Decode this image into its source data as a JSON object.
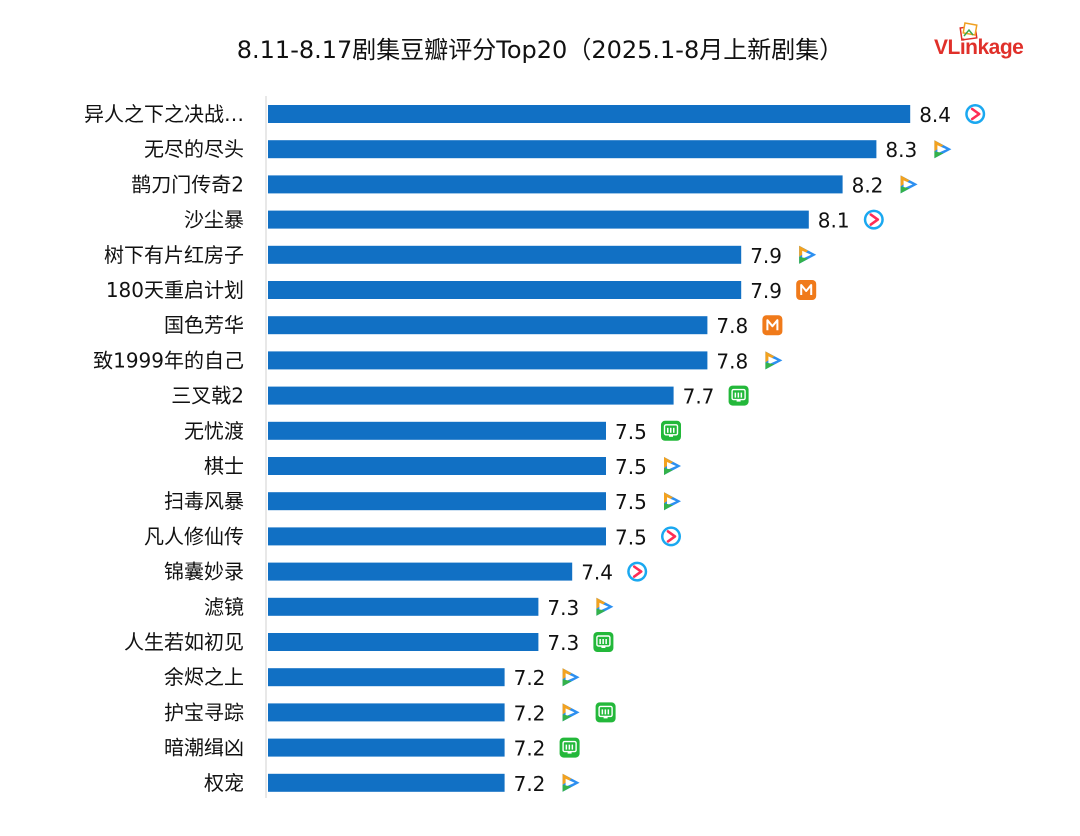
{
  "header": {
    "title": "8.11-8.17剧集豆瓣评分Top20（2025.1-8月上新剧集）",
    "logo_text": "VLinkage"
  },
  "platform_icons": {
    "tencent": {
      "icon": "tencent-video-icon",
      "colors": [
        "#2c8ff0",
        "#f3a21f",
        "#34b24a"
      ]
    },
    "youku": {
      "icon": "youku-icon",
      "colors": [
        "#1aa8f0",
        "#ff2d55"
      ]
    },
    "mango": {
      "icon": "mango-tv-icon",
      "colors": [
        "#f07a1a"
      ]
    },
    "iqiyi": {
      "icon": "iqiyi-icon",
      "colors": [
        "#23b83a"
      ]
    }
  },
  "chart_data": {
    "type": "bar",
    "orientation": "horizontal",
    "title": "8.11-8.17剧集豆瓣评分Top20（2025.1-8月上新剧集）",
    "xlabel": "",
    "ylabel": "",
    "bar_color": "#1170c4",
    "xlim": [
      6.5,
      8.5
    ],
    "grid": false,
    "categories": [
      "异人之下之决战…",
      "无尽的尽头",
      "鹊刀门传奇2",
      "沙尘暴",
      "树下有片红房子",
      "180天重启计划",
      "国色芳华",
      "致1999年的自己",
      "三叉戟2",
      "无忧渡",
      "棋士",
      "扫毒风暴",
      "凡人修仙传",
      "锦囊妙录",
      "滤镜",
      "人生若如初见",
      "余烬之上",
      "护宝寻踪",
      "暗潮缉凶",
      "权宠"
    ],
    "values": [
      8.4,
      8.3,
      8.2,
      8.1,
      7.9,
      7.9,
      7.8,
      7.8,
      7.7,
      7.5,
      7.5,
      7.5,
      7.5,
      7.4,
      7.3,
      7.3,
      7.2,
      7.2,
      7.2,
      7.2
    ],
    "labels": [
      "8.4",
      "8.3",
      "8.2",
      "8.1",
      "7.9",
      "7.9",
      "7.8",
      "7.8",
      "7.7",
      "7.5",
      "7.5",
      "7.5",
      "7.5",
      "7.4",
      "7.3",
      "7.3",
      "7.2",
      "7.2",
      "7.2",
      "7.2"
    ],
    "platforms": [
      [
        "youku"
      ],
      [
        "tencent"
      ],
      [
        "tencent"
      ],
      [
        "youku"
      ],
      [
        "tencent"
      ],
      [
        "mango"
      ],
      [
        "mango"
      ],
      [
        "tencent"
      ],
      [
        "iqiyi"
      ],
      [
        "iqiyi"
      ],
      [
        "tencent"
      ],
      [
        "tencent"
      ],
      [
        "youku"
      ],
      [
        "youku"
      ],
      [
        "tencent"
      ],
      [
        "iqiyi"
      ],
      [
        "tencent"
      ],
      [
        "tencent",
        "iqiyi"
      ],
      [
        "iqiyi"
      ],
      [
        "tencent"
      ]
    ]
  }
}
